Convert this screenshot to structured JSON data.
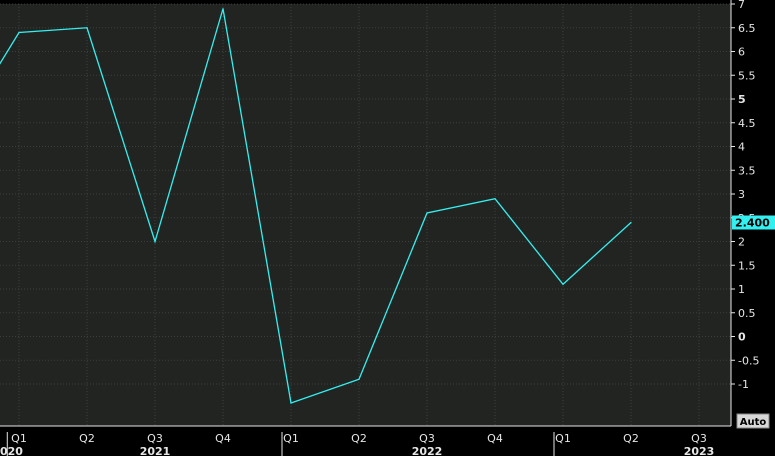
{
  "colors": {
    "background": "#000000",
    "plot_background": "#222422",
    "grid": "#3c3f3c",
    "series": "#33f0f0",
    "last_value_badge": "#33f0f0",
    "text": "#e6e6e6"
  },
  "chart_data": {
    "type": "line",
    "title": "",
    "xlabel": "",
    "ylabel": "",
    "quarters": [
      "Q1",
      "Q2",
      "Q3",
      "Q4",
      "Q1",
      "Q2",
      "Q3",
      "Q4",
      "Q1",
      "Q2",
      "Q3"
    ],
    "years": [
      {
        "label": "020",
        "at_index": -0.5
      },
      {
        "label": "2021",
        "at_index": 2
      },
      {
        "label": "2022",
        "at_index": 6
      },
      {
        "label": "2023",
        "at_index": 10
      }
    ],
    "series": [
      {
        "x": [
          -0.3,
          0,
          1,
          2,
          3,
          4,
          5,
          6,
          7,
          8,
          9
        ],
        "values": [
          5.7,
          6.4,
          6.5,
          2.0,
          6.9,
          -1.4,
          -0.9,
          2.6,
          2.9,
          1.1,
          2.4
        ]
      }
    ],
    "ylim": [
      -1.6,
      7.0
    ],
    "yticks": [
      "7",
      "6.5",
      "6",
      "5.5",
      "5",
      "4.5",
      "4",
      "3.5",
      "3",
      "2.5",
      "2",
      "1.5",
      "1",
      "0.5",
      "0",
      "-0.5",
      "-1"
    ],
    "bold_yticks": [
      "5",
      "0"
    ],
    "last_value_label": "2.400",
    "grid": true,
    "auto_button": "Auto"
  }
}
